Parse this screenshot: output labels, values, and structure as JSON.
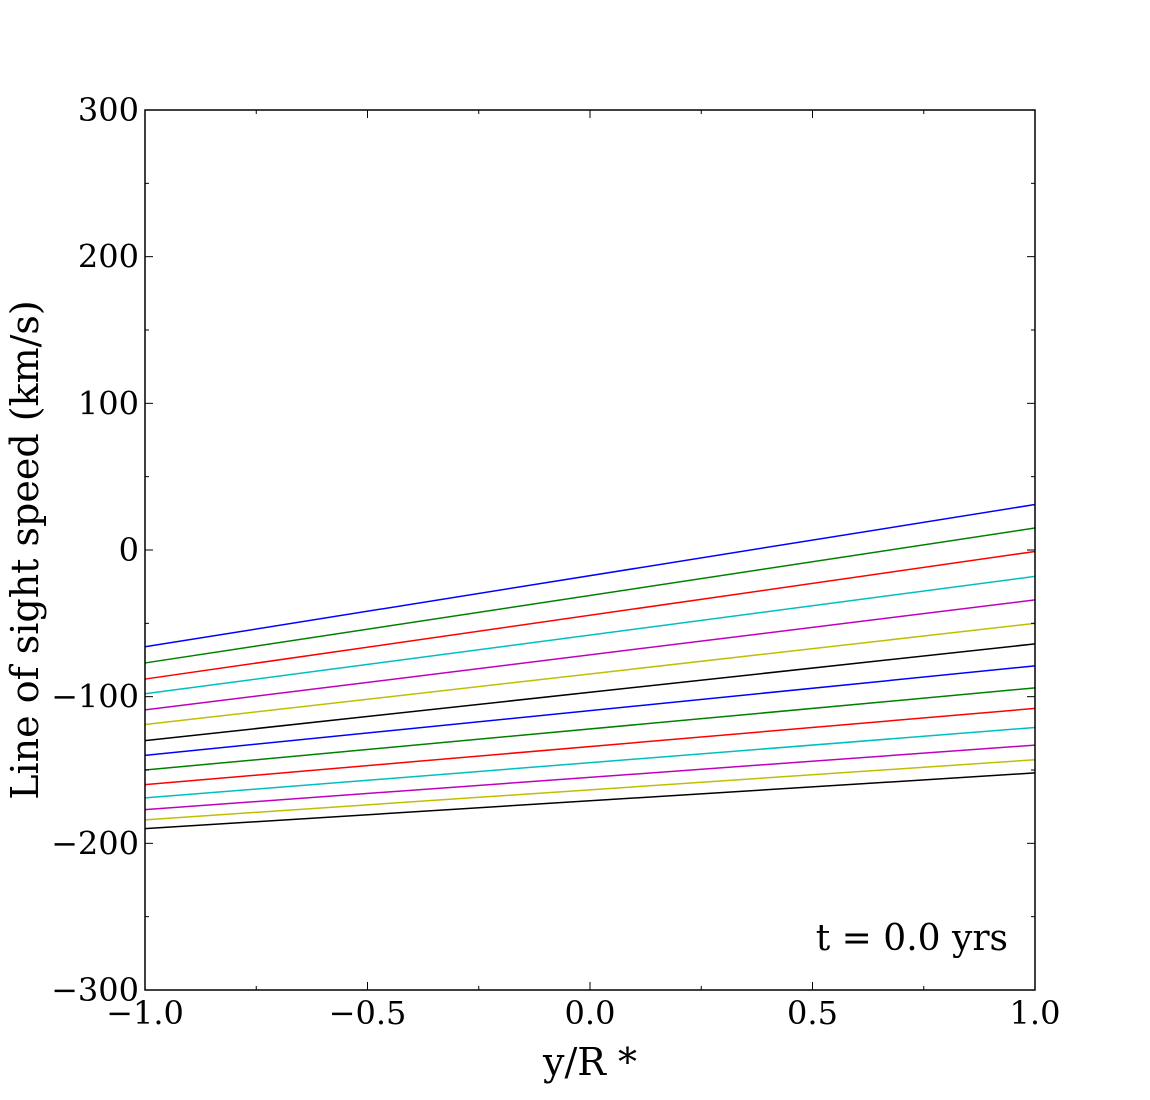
{
  "chart_data": {
    "type": "line",
    "xlabel": "y/R *",
    "ylabel": "Line of sight speed (km/s)",
    "xlim": [
      -1.0,
      1.0
    ],
    "ylim": [
      -300,
      300
    ],
    "x_ticks": [
      "−1.0",
      "−0.5",
      "0.0",
      "0.5",
      "1.0"
    ],
    "y_ticks": [
      "−300",
      "−200",
      "−100",
      "0",
      "100",
      "200",
      "300"
    ],
    "annotation": "t = 0.0 yrs",
    "grid": false,
    "series": [
      {
        "color": "#0000ff",
        "x": [
          -1.0,
          1.0
        ],
        "y": [
          -66,
          31
        ]
      },
      {
        "color": "#008000",
        "x": [
          -1.0,
          1.0
        ],
        "y": [
          -77,
          15
        ]
      },
      {
        "color": "#ff0000",
        "x": [
          -1.0,
          1.0
        ],
        "y": [
          -88,
          -1
        ]
      },
      {
        "color": "#00bfbf",
        "x": [
          -1.0,
          1.0
        ],
        "y": [
          -98,
          -18
        ]
      },
      {
        "color": "#bf00bf",
        "x": [
          -1.0,
          1.0
        ],
        "y": [
          -109,
          -34
        ]
      },
      {
        "color": "#bfbf00",
        "x": [
          -1.0,
          1.0
        ],
        "y": [
          -119,
          -50
        ]
      },
      {
        "color": "#000000",
        "x": [
          -1.0,
          1.0
        ],
        "y": [
          -130,
          -64
        ]
      },
      {
        "color": "#0000ff",
        "x": [
          -1.0,
          1.0
        ],
        "y": [
          -140,
          -79
        ]
      },
      {
        "color": "#008000",
        "x": [
          -1.0,
          1.0
        ],
        "y": [
          -150,
          -94
        ]
      },
      {
        "color": "#ff0000",
        "x": [
          -1.0,
          1.0
        ],
        "y": [
          -160,
          -108
        ]
      },
      {
        "color": "#00bfbf",
        "x": [
          -1.0,
          1.0
        ],
        "y": [
          -169,
          -121
        ]
      },
      {
        "color": "#bf00bf",
        "x": [
          -1.0,
          1.0
        ],
        "y": [
          -177,
          -133
        ]
      },
      {
        "color": "#bfbf00",
        "x": [
          -1.0,
          1.0
        ],
        "y": [
          -184,
          -143
        ]
      },
      {
        "color": "#000000",
        "x": [
          -1.0,
          1.0
        ],
        "y": [
          -190,
          -152
        ]
      }
    ]
  }
}
